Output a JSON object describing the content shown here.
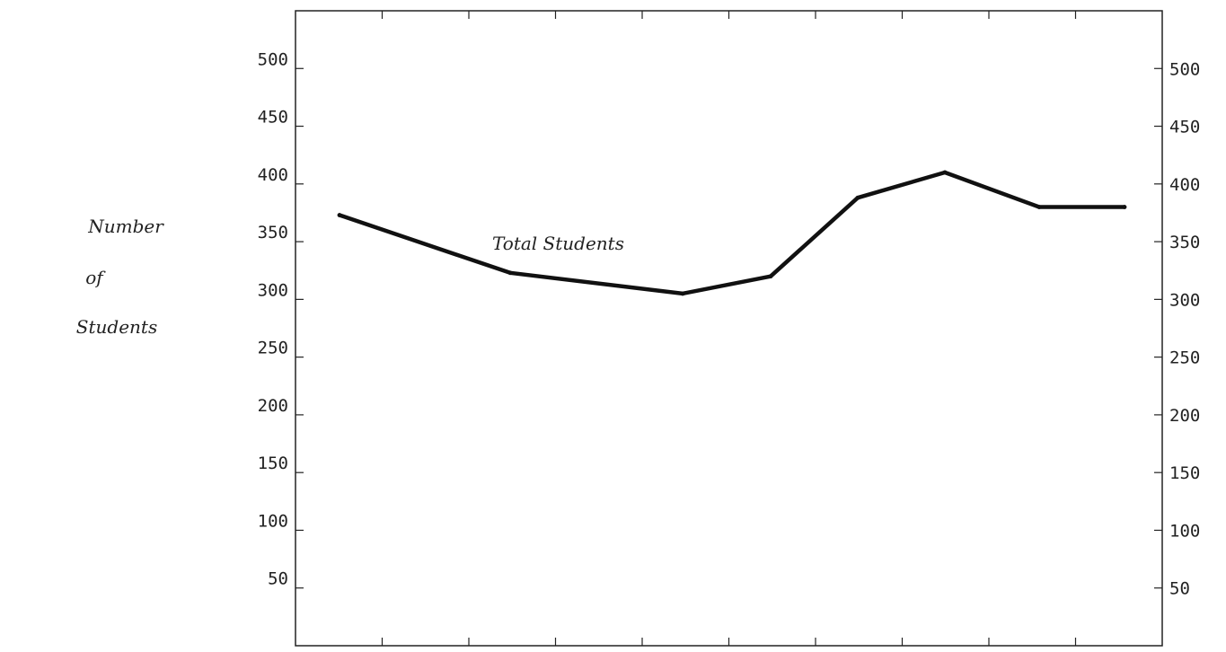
{
  "chart_data": {
    "type": "line",
    "title": "",
    "xlabel": "",
    "ylabel_lines": [
      "Number",
      "of",
      "Students"
    ],
    "ylim": [
      0,
      550
    ],
    "yticks": [
      50,
      100,
      150,
      200,
      250,
      300,
      350,
      400,
      450,
      500
    ],
    "yticks_right": [
      50,
      100,
      150,
      200,
      250,
      300,
      350,
      400,
      450,
      500
    ],
    "x_tick_count": 10,
    "grid": false,
    "series": [
      {
        "name": "Total Students",
        "color": "#111111",
        "values": [
          373,
          323,
          305,
          320,
          388,
          410,
          380,
          380
        ]
      }
    ]
  }
}
